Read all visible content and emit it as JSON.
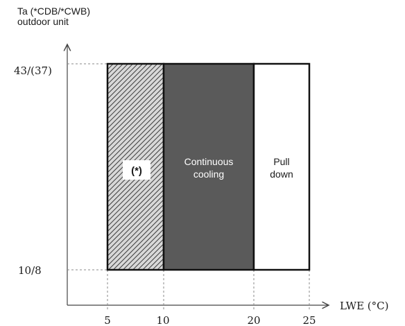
{
  "y_axis": {
    "label_line1": "Ta (*CDB/*CWB)",
    "label_line2": "outdoor unit",
    "tick_top": "43/(37)",
    "tick_bottom": "10/8"
  },
  "x_axis": {
    "label": "LWE (°C)",
    "ticks": [
      "5",
      "10",
      "20",
      "25"
    ]
  },
  "zones": {
    "restricted": {
      "label": "(*)",
      "x_range": [
        5,
        10
      ],
      "fill": "hatched"
    },
    "continuous": {
      "line1": "Continuous",
      "line2": "cooling",
      "x_range": [
        10,
        20
      ],
      "color": "#5a5a5a"
    },
    "pulldown": {
      "line1": "Pull",
      "line2": "down",
      "x_range": [
        20,
        25
      ],
      "color": "#ffffff"
    }
  },
  "colors": {
    "outline": "#111111",
    "axis": "#444444",
    "dashed": "#888888",
    "continuous_fill": "#5a5a5a"
  }
}
